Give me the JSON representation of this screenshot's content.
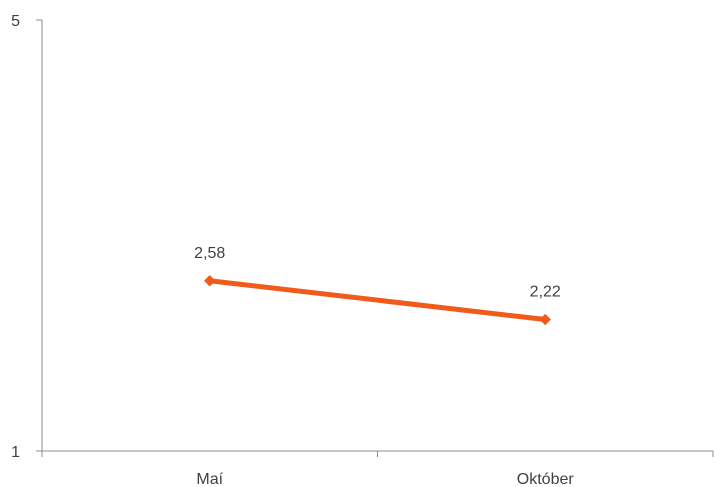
{
  "chart_data": {
    "type": "line",
    "title": "",
    "xlabel": "",
    "ylabel": "",
    "categories": [
      "Maí",
      "Október"
    ],
    "series": [
      {
        "values": [
          2.58,
          2.22
        ],
        "data_labels": [
          "2,58",
          "2,22"
        ],
        "color": "#f05a1a"
      }
    ],
    "ylim": [
      1,
      5
    ],
    "y_ticks": [
      1,
      5
    ],
    "y_tick_labels": [
      "1",
      "5"
    ],
    "grid": false,
    "legend": "none",
    "axis_color": "#8c8c8c"
  }
}
